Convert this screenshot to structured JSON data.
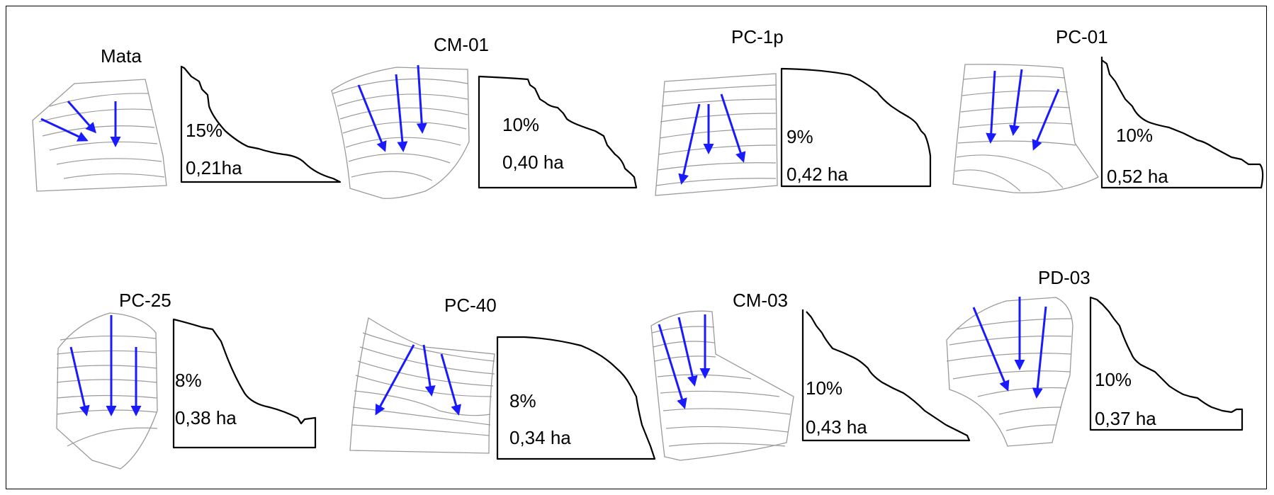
{
  "colors": {
    "arrow": "#1a1aff",
    "contour": "#9a9a9a",
    "profile": "#000000",
    "frame": "#000000"
  },
  "panels": [
    {
      "name": "Mata",
      "slope": "15%",
      "area": "0,21ha"
    },
    {
      "name": "CM-01",
      "slope": "10%",
      "area": "0,40 ha"
    },
    {
      "name": "PC-1p",
      "slope": "9%",
      "area": "0,42 ha"
    },
    {
      "name": "PC-01",
      "slope": "10%",
      "area": "0,52 ha"
    },
    {
      "name": "PC-25",
      "slope": "8%",
      "area": "0,38 ha"
    },
    {
      "name": "PC-40",
      "slope": "8%",
      "area": "0,34 ha"
    },
    {
      "name": "CM-03",
      "slope": "10%",
      "area": "0,43 ha"
    },
    {
      "name": "PD-03",
      "slope": "10%",
      "area": "0,37 ha"
    }
  ]
}
